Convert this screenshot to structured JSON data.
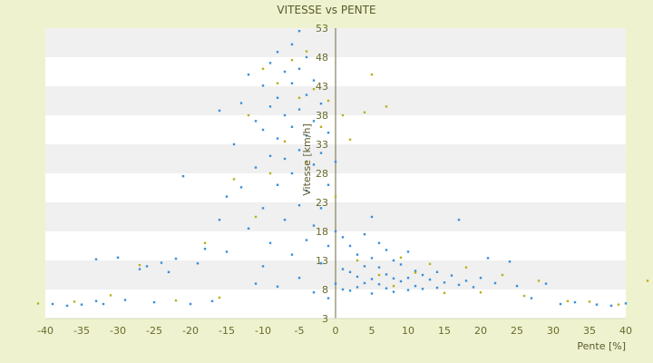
{
  "chart_data": {
    "type": "scatter",
    "title": "VITESSE vs PENTE",
    "xlabel": "Pente [%]",
    "ylabel": "Vitesse [km/h]",
    "xlim": [
      -40,
      40
    ],
    "ylim": [
      3,
      53
    ],
    "xticks": [
      "-40",
      "-35",
      "-30",
      "-25",
      "-20",
      "-15",
      "-10",
      "-5",
      "0",
      "5",
      "10",
      "15",
      "20",
      "25",
      "30",
      "35",
      "40"
    ],
    "yticks": [
      "3",
      "8",
      "13",
      "18",
      "23",
      "28",
      "33",
      "38",
      "43",
      "48",
      "53"
    ],
    "grid": "banded horizontal",
    "legend": "none",
    "colors": {
      "background": "#eef2cf",
      "plot": "#ffffff",
      "band": "#f0f0f0",
      "series_a": "#3a8fd9",
      "series_b": "#b8b020",
      "axis": "#6b6b3a"
    },
    "series": [
      {
        "color": "#3a8fd9",
        "points": [
          [
            -39,
            5.5
          ],
          [
            -37,
            5.2
          ],
          [
            -35,
            5.4
          ],
          [
            -33,
            13.2
          ],
          [
            -33,
            6.0
          ],
          [
            -32,
            5.5
          ],
          [
            -30,
            13.5
          ],
          [
            -29,
            6.2
          ],
          [
            -27,
            11.5
          ],
          [
            -26,
            12.0
          ],
          [
            -25,
            5.8
          ],
          [
            -24,
            12.6
          ],
          [
            -23,
            11.0
          ],
          [
            -22,
            13.3
          ],
          [
            -21,
            27.5
          ],
          [
            -20,
            5.5
          ],
          [
            -19,
            12.5
          ],
          [
            -18,
            15.0
          ],
          [
            -17,
            6.0
          ],
          [
            -16,
            38.8
          ],
          [
            -16,
            20.0
          ],
          [
            -15,
            14.5
          ],
          [
            -15,
            24.0
          ],
          [
            -14,
            33.0
          ],
          [
            -13,
            40.1
          ],
          [
            -13,
            25.6
          ],
          [
            -12,
            45.0
          ],
          [
            -12,
            18.5
          ],
          [
            -11,
            37.0
          ],
          [
            -11,
            29.0
          ],
          [
            -11,
            9.0
          ],
          [
            -10,
            43.1
          ],
          [
            -10,
            35.5
          ],
          [
            -10,
            22.0
          ],
          [
            -10,
            12.0
          ],
          [
            -9,
            47.0
          ],
          [
            -9,
            39.5
          ],
          [
            -9,
            31.0
          ],
          [
            -9,
            16.0
          ],
          [
            -8,
            48.9
          ],
          [
            -8,
            41.0
          ],
          [
            -8,
            34.0
          ],
          [
            -8,
            26.0
          ],
          [
            -8,
            8.5
          ],
          [
            -7,
            45.5
          ],
          [
            -7,
            38.0
          ],
          [
            -7,
            30.5
          ],
          [
            -7,
            20.0
          ],
          [
            -6,
            50.2
          ],
          [
            -6,
            43.5
          ],
          [
            -6,
            36.0
          ],
          [
            -6,
            28.0
          ],
          [
            -6,
            14.0
          ],
          [
            -5,
            52.5
          ],
          [
            -5,
            46.0
          ],
          [
            -5,
            39.0
          ],
          [
            -5,
            32.0
          ],
          [
            -5,
            22.5
          ],
          [
            -5,
            10.0
          ],
          [
            -4,
            48.0
          ],
          [
            -4,
            41.5
          ],
          [
            -4,
            34.5
          ],
          [
            -4,
            25.0
          ],
          [
            -4,
            16.5
          ],
          [
            -3,
            44.0
          ],
          [
            -3,
            37.0
          ],
          [
            -3,
            29.5
          ],
          [
            -3,
            19.0
          ],
          [
            -3,
            7.5
          ],
          [
            -2,
            40.0
          ],
          [
            -2,
            31.5
          ],
          [
            -2,
            22.0
          ],
          [
            -2,
            12.5
          ],
          [
            -1,
            35.0
          ],
          [
            -1,
            26.0
          ],
          [
            -1,
            15.5
          ],
          [
            -1,
            6.5
          ],
          [
            0,
            30.0
          ],
          [
            0,
            18.0
          ],
          [
            0,
            9.0
          ],
          [
            1,
            17.0
          ],
          [
            1,
            11.5
          ],
          [
            1,
            8.0
          ],
          [
            2,
            15.5
          ],
          [
            2,
            11.0
          ],
          [
            2,
            7.8
          ],
          [
            3,
            14.0
          ],
          [
            3,
            10.2
          ],
          [
            3,
            8.4
          ],
          [
            4,
            17.5
          ],
          [
            4,
            12.0
          ],
          [
            4,
            9.1
          ],
          [
            5,
            20.5
          ],
          [
            5,
            13.4
          ],
          [
            5,
            9.8
          ],
          [
            5,
            7.3
          ],
          [
            6,
            16.0
          ],
          [
            6,
            11.8
          ],
          [
            6,
            8.9
          ],
          [
            7,
            14.8
          ],
          [
            7,
            10.6
          ],
          [
            7,
            8.2
          ],
          [
            8,
            13.0
          ],
          [
            8,
            9.9
          ],
          [
            8,
            7.6
          ],
          [
            9,
            12.3
          ],
          [
            9,
            9.4
          ],
          [
            10,
            14.5
          ],
          [
            10,
            10.0
          ],
          [
            10,
            7.9
          ],
          [
            11,
            11.2
          ],
          [
            11,
            8.6
          ],
          [
            12,
            10.5
          ],
          [
            12,
            8.1
          ],
          [
            13,
            9.7
          ],
          [
            14,
            11.0
          ],
          [
            14,
            8.3
          ],
          [
            15,
            9.2
          ],
          [
            16,
            10.4
          ],
          [
            17,
            8.8
          ],
          [
            17,
            20.0
          ],
          [
            18,
            9.5
          ],
          [
            19,
            8.4
          ],
          [
            20,
            10.0
          ],
          [
            21,
            13.4
          ],
          [
            22,
            9.1
          ],
          [
            24,
            12.8
          ],
          [
            25,
            8.6
          ],
          [
            27,
            6.5
          ],
          [
            29,
            9.0
          ],
          [
            31,
            5.5
          ],
          [
            33,
            5.8
          ],
          [
            36,
            5.4
          ],
          [
            38,
            5.2
          ],
          [
            40,
            5.6
          ]
        ]
      },
      {
        "color": "#b8b020",
        "points": [
          [
            -41,
            5.6
          ],
          [
            -36,
            5.9
          ],
          [
            -31,
            7.0
          ],
          [
            -27,
            12.2
          ],
          [
            -22,
            6.1
          ],
          [
            -18,
            16.0
          ],
          [
            -16,
            6.6
          ],
          [
            -14,
            27.0
          ],
          [
            -12,
            38.0
          ],
          [
            -11,
            20.5
          ],
          [
            -10,
            46.0
          ],
          [
            -9,
            28.0
          ],
          [
            -8,
            43.5
          ],
          [
            -7,
            33.5
          ],
          [
            -6,
            47.5
          ],
          [
            -5,
            41.0
          ],
          [
            -4,
            49.0
          ],
          [
            -4,
            30.0
          ],
          [
            -3,
            42.5
          ],
          [
            -2,
            36.0
          ],
          [
            -1,
            40.5
          ],
          [
            0,
            24.0
          ],
          [
            1,
            38.0
          ],
          [
            2,
            33.8
          ],
          [
            3,
            13.0
          ],
          [
            4,
            38.5
          ],
          [
            5,
            45.0
          ],
          [
            6,
            10.5
          ],
          [
            7,
            39.5
          ],
          [
            8,
            8.6
          ],
          [
            9,
            13.5
          ],
          [
            11,
            10.9
          ],
          [
            13,
            12.4
          ],
          [
            15,
            7.4
          ],
          [
            18,
            11.8
          ],
          [
            20,
            7.5
          ],
          [
            23,
            10.5
          ],
          [
            26,
            6.9
          ],
          [
            28,
            9.5
          ],
          [
            32,
            6.0
          ],
          [
            35,
            5.9
          ],
          [
            39,
            5.4
          ],
          [
            43,
            9.5
          ]
        ]
      }
    ]
  }
}
